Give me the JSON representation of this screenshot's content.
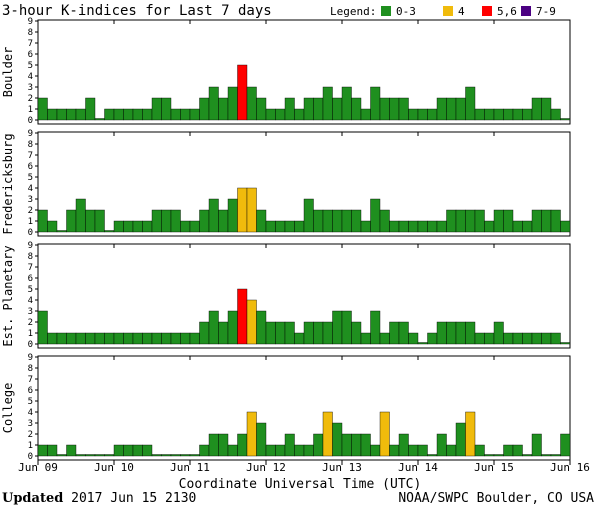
{
  "title": "3-hour K-indices for Last 7 days",
  "legend": {
    "label": "Legend:",
    "items": [
      {
        "label": "0-3",
        "color": "#1f8f1f"
      },
      {
        "label": "4",
        "color": "#f0bb0c"
      },
      {
        "label": "5,6",
        "color": "#ff0000"
      },
      {
        "label": "7-9",
        "color": "#4b0082"
      }
    ]
  },
  "chart_data": {
    "type": "bar",
    "title": "3-hour K-indices for Last 7 days",
    "xlabel": "Coordinate Universal Time (UTC)",
    "ylim": [
      0,
      9
    ],
    "yticks": [
      "0",
      "1",
      "2",
      "3",
      "4",
      "5",
      "6",
      "7",
      "8",
      "9"
    ],
    "x_tick_labels": [
      "Jun 09",
      "Jun 10",
      "Jun 11",
      "Jun 12",
      "Jun 13",
      "Jun 14",
      "Jun 15",
      "Jun 16"
    ],
    "bars_per_day": 8,
    "color_scale": [
      {
        "range": "0-3",
        "color": "#1f8f1f"
      },
      {
        "range": "4",
        "color": "#f0bb0c"
      },
      {
        "range": "5,6",
        "color": "#ff0000"
      },
      {
        "range": "7-9",
        "color": "#4b0082"
      }
    ],
    "series": [
      {
        "name": "Boulder",
        "values": [
          2,
          1,
          1,
          1,
          1,
          2,
          0,
          1,
          1,
          1,
          1,
          1,
          2,
          2,
          1,
          1,
          1,
          2,
          3,
          2,
          3,
          5,
          3,
          2,
          1,
          1,
          2,
          1,
          2,
          2,
          3,
          2,
          3,
          2,
          1,
          3,
          2,
          2,
          2,
          1,
          1,
          1,
          2,
          2,
          2,
          3,
          1,
          1,
          1,
          1,
          1,
          1,
          2,
          2,
          1,
          0
        ]
      },
      {
        "name": "Fredericksburg",
        "values": [
          2,
          1,
          0,
          2,
          3,
          2,
          2,
          0,
          1,
          1,
          1,
          1,
          2,
          2,
          2,
          1,
          1,
          2,
          3,
          2,
          3,
          4,
          4,
          2,
          1,
          1,
          1,
          1,
          3,
          2,
          2,
          2,
          2,
          2,
          1,
          3,
          2,
          1,
          1,
          1,
          1,
          1,
          1,
          2,
          2,
          2,
          2,
          1,
          2,
          2,
          1,
          1,
          2,
          2,
          2,
          1
        ]
      },
      {
        "name": "Est. Planetary",
        "values": [
          3,
          1,
          1,
          1,
          1,
          1,
          1,
          1,
          1,
          1,
          1,
          1,
          1,
          1,
          1,
          1,
          1,
          2,
          3,
          2,
          3,
          5,
          4,
          3,
          2,
          2,
          2,
          1,
          2,
          2,
          2,
          3,
          3,
          2,
          1,
          3,
          1,
          2,
          2,
          1,
          0,
          1,
          2,
          2,
          2,
          2,
          1,
          1,
          2,
          1,
          1,
          1,
          1,
          1,
          1,
          0
        ]
      },
      {
        "name": "College",
        "values": [
          1,
          1,
          0,
          1,
          0,
          0,
          0,
          0,
          1,
          1,
          1,
          1,
          0,
          0,
          0,
          0,
          0,
          1,
          2,
          2,
          1,
          2,
          4,
          3,
          1,
          1,
          2,
          1,
          1,
          2,
          4,
          3,
          2,
          2,
          2,
          1,
          4,
          1,
          2,
          1,
          1,
          0,
          2,
          1,
          3,
          4,
          1,
          0,
          0,
          1,
          1,
          0,
          2,
          0,
          0,
          2
        ]
      }
    ]
  },
  "footer": {
    "updated_label": "Updated",
    "updated_value": "2017 Jun 15 2130",
    "source": "NOAA/SWPC Boulder, CO USA"
  }
}
